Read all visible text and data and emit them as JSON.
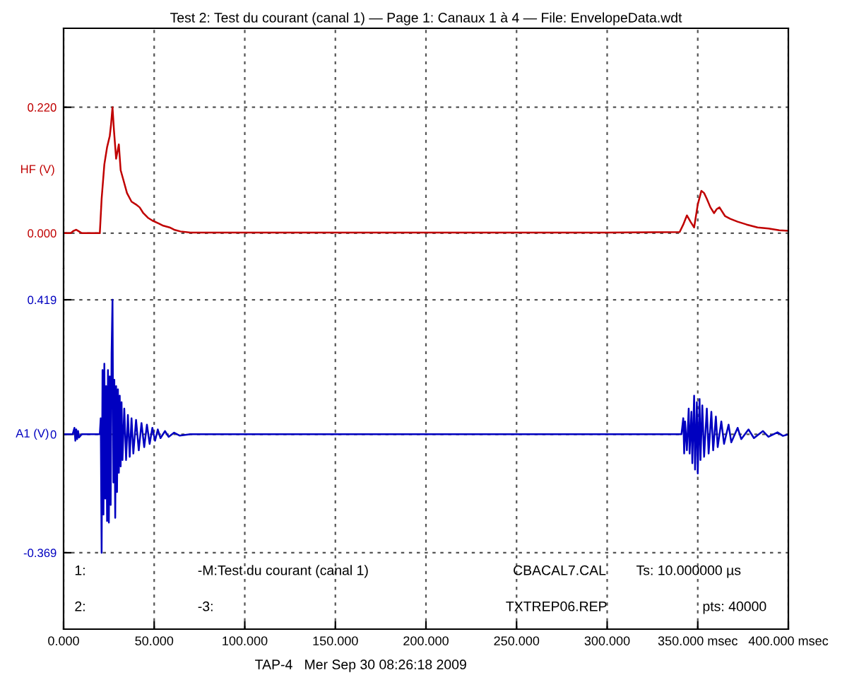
{
  "chart_data": [
    {
      "type": "line",
      "title": "Test 2: Test du courant (canal 1) — Page 1: Canaux 1 à 4 — File: EnvelopeData.wdt",
      "ylabel": "HF (V)",
      "series": [
        {
          "color": "#c00000",
          "x": [
            0,
            4,
            5.5,
            7,
            8.5,
            10,
            20,
            21,
            22.5,
            24,
            25.5,
            26.2,
            27,
            27.8,
            29,
            30.5,
            31.5,
            33,
            35,
            37.5,
            40,
            42,
            44,
            46.5,
            49,
            52.5,
            55,
            58.5,
            61,
            64.5,
            70,
            100,
            150,
            200,
            250,
            300,
            340,
            342,
            344,
            346,
            348,
            350,
            352,
            353.5,
            355,
            357,
            359,
            360.5,
            362,
            365,
            368,
            372,
            377,
            383,
            389,
            395,
            400
          ],
          "values": [
            0,
            0,
            0.004,
            0.006,
            0.003,
            0,
            0,
            0.06,
            0.12,
            0.15,
            0.17,
            0.19,
            0.22,
            0.18,
            0.13,
            0.155,
            0.11,
            0.093,
            0.07,
            0.055,
            0.05,
            0.045,
            0.035,
            0.027,
            0.022,
            0.017,
            0.013,
            0.01,
            0.006,
            0.003,
            0.001,
            0.001,
            0.001,
            0.001,
            0.001,
            0.001,
            0.002,
            0.015,
            0.031,
            0.02,
            0.01,
            0.05,
            0.074,
            0.07,
            0.06,
            0.045,
            0.035,
            0.042,
            0.045,
            0.03,
            0.025,
            0.02,
            0.015,
            0.01,
            0.008,
            0.005,
            0.004
          ]
        }
      ],
      "xlim": [
        0,
        400
      ],
      "xticks": [
        0,
        50,
        100,
        150,
        200,
        250,
        300,
        350,
        400
      ],
      "ylim": [
        -0.062,
        0.358
      ],
      "yticks": [
        {
          "value": 0.22,
          "label": "0.220"
        },
        {
          "value": 0,
          "label": "0.000"
        }
      ],
      "tick_labels": "y",
      "grid": true,
      "line_style": "solid"
    },
    {
      "type": "line",
      "ylabel": "A1 (V)",
      "series": [
        {
          "color": "#0000c0",
          "x": [
            0,
            5,
            6,
            6.5,
            7,
            7.5,
            8,
            8.5,
            10,
            20,
            20.5,
            21,
            21.5,
            22,
            22.5,
            23,
            23.5,
            24,
            24.5,
            25,
            25.5,
            26,
            26.5,
            27,
            27.5,
            28,
            28.5,
            29,
            29.5,
            30,
            30.5,
            31,
            31.5,
            32,
            32.5,
            33.5,
            34.5,
            35.5,
            36.5,
            37.5,
            38.5,
            40,
            41.5,
            43,
            44.5,
            46,
            47.5,
            49,
            50.5,
            52,
            53.5,
            56,
            58,
            61,
            64,
            70,
            150,
            250,
            341,
            342,
            342.5,
            343,
            344,
            345,
            345.5,
            346.5,
            347,
            348,
            348.5,
            349.5,
            350,
            351,
            351.5,
            352.5,
            353.5,
            355,
            356,
            357.5,
            358.5,
            360,
            361,
            363,
            364.5,
            367,
            368.5,
            372,
            374,
            378,
            381,
            386,
            389,
            394,
            397,
            400
          ],
          "values": [
            0,
            0,
            0.02,
            -0.02,
            0.015,
            -0.015,
            0.01,
            -0.01,
            0,
            0,
            0.05,
            -0.369,
            0.2,
            -0.25,
            0.22,
            -0.2,
            0.15,
            -0.27,
            0.2,
            -0.275,
            0.18,
            -0.22,
            0.25,
            0.419,
            -0.15,
            0.17,
            -0.26,
            0.15,
            -0.18,
            0.14,
            -0.12,
            0.12,
            -0.1,
            0.1,
            -0.08,
            0.08,
            -0.08,
            0.06,
            -0.07,
            0.05,
            -0.06,
            0.045,
            -0.05,
            0.035,
            -0.04,
            0.03,
            -0.03,
            0.02,
            -0.02,
            0.015,
            -0.012,
            0.01,
            -0.008,
            0.005,
            -0.004,
            0,
            0,
            0,
            0,
            0.05,
            -0.06,
            0.04,
            -0.05,
            0.08,
            -0.06,
            0.07,
            -0.09,
            0.12,
            -0.11,
            0.1,
            -0.122,
            0.11,
            -0.08,
            0.09,
            -0.07,
            0.08,
            -0.06,
            0.07,
            -0.05,
            0.055,
            -0.04,
            0.04,
            -0.03,
            0.03,
            -0.025,
            0.02,
            -0.015,
            0.015,
            -0.012,
            0.01,
            -0.008,
            0.006,
            -0.005,
            0
          ]
        }
      ],
      "xlim": [
        0,
        400
      ],
      "xticks": [
        {
          "value": 0,
          "label": "0.000"
        },
        {
          "value": 50,
          "label": "50.000"
        },
        {
          "value": 100,
          "label": "100.000"
        },
        {
          "value": 150,
          "label": "150.000"
        },
        {
          "value": 200,
          "label": "200.000"
        },
        {
          "value": 250,
          "label": "250.000"
        },
        {
          "value": 300,
          "label": "300.000"
        },
        {
          "value": 350,
          "label": "350.000 msec"
        },
        {
          "value": 400,
          "label": "400.000 msec"
        }
      ],
      "ylim": [
        -0.607,
        0.516
      ],
      "yticks": [
        {
          "value": 0.419,
          "label": "0.419"
        },
        0,
        {
          "value": -0.369,
          "label": "-0.369"
        }
      ],
      "grid": true,
      "line_style": "solid",
      "annotations": [
        "1:",
        "-M:Test du courant (canal 1)",
        "CBACAL7.CAL",
        "Ts: 10.000000 µs",
        "2:",
        "-3:",
        "TXTREP06.REP",
        "pts: 40000",
        "TAP-4   Mer Sep 30 08:26:18 2009"
      ]
    }
  ]
}
